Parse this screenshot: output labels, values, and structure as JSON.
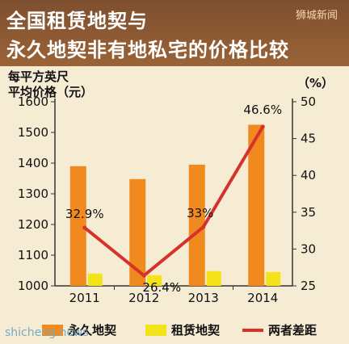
{
  "header": {
    "title_line1": "全国租赁地契与",
    "title_line2": "永久地契非有地私宅的价格比较",
    "watermark": "狮城新闻"
  },
  "axes": {
    "left_label": "每平方英尺\n平均价格（元）",
    "right_label": "（%）"
  },
  "site_mark": "shicheng.news",
  "colors": {
    "freehold": "#f08a1e",
    "leasehold": "#f4e21a",
    "gap_line": "#d6322c",
    "title_bg": "#8a5631",
    "background": "#f6ecd3"
  },
  "chart_data": {
    "type": "bar",
    "categories": [
      "2011",
      "2012",
      "2013",
      "2014"
    ],
    "series": [
      {
        "name": "永久地契",
        "type": "bar",
        "axis": "left",
        "values": [
          1390,
          1348,
          1395,
          1525
        ]
      },
      {
        "name": "租赁地契",
        "type": "bar",
        "axis": "left",
        "values": [
          1040,
          1035,
          1048,
          1045
        ]
      },
      {
        "name": "两者差距",
        "type": "line",
        "axis": "right",
        "values": [
          32.9,
          26.4,
          33,
          46.6
        ],
        "labels": [
          "32.9%",
          "26.4%",
          "33%",
          "46.6%"
        ]
      }
    ],
    "ylim_left": [
      1000,
      1600
    ],
    "yticks_left": [
      1000,
      1100,
      1200,
      1300,
      1400,
      1500,
      1600
    ],
    "ylim_right": [
      25,
      50
    ],
    "yticks_right": [
      25,
      30,
      35,
      40,
      45,
      50
    ],
    "ylabel_left": "每平方英尺平均价格（元）",
    "ylabel_right": "（%）",
    "legend_position": "bottom",
    "grid": false
  }
}
